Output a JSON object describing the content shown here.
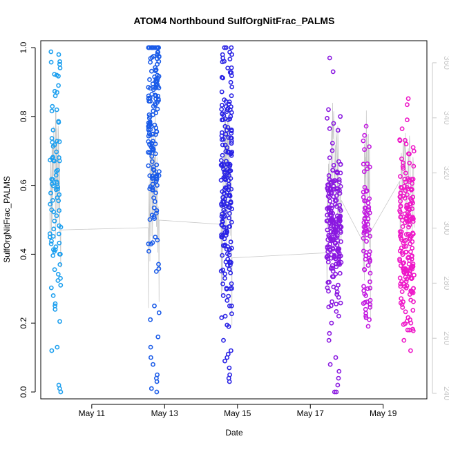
{
  "chart_data": {
    "type": "scatter",
    "title": "ATOM4 Northbound SulfOrgNitFrac_PALMS",
    "xlabel": "Date",
    "ylabel": "SulfOrgNitFrac_PALMS",
    "x_tick_labels": [
      "May 11",
      "May 13",
      "May 15",
      "May 17",
      "May 19"
    ],
    "x_tick_day": [
      11,
      13,
      15,
      17,
      19
    ],
    "xlim_day": [
      9.6,
      20.2
    ],
    "ylim": [
      -0.02,
      1.02
    ],
    "y_ticks": [
      "0.0",
      "0.2",
      "0.4",
      "0.6",
      "0.8",
      "1.0"
    ],
    "y2lim": [
      238,
      368
    ],
    "y2_ticks": [
      "240",
      "260",
      "280",
      "300",
      "320",
      "340",
      "360"
    ],
    "grid": false,
    "legend": "none",
    "secondary_series_color": "#c8c8c8",
    "clusters": [
      {
        "day_start": 9.85,
        "day_end": 10.15,
        "color": "#1ea0ef",
        "n": 75,
        "y_center": 0.62,
        "y_spread": 0.18,
        "outliers": [
          0.0,
          0.01,
          0.02,
          0.12,
          0.13,
          0.25,
          0.24,
          0.31,
          0.33,
          0.37,
          0.45,
          0.4,
          0.43,
          0.87,
          0.89
        ]
      },
      {
        "day_start": 12.55,
        "day_end": 12.85,
        "color": "#1a5be8",
        "n": 160,
        "y_center": 0.8,
        "y_spread": 0.17,
        "outliers": [
          0.0,
          0.01,
          0.03,
          0.04,
          0.05,
          0.08,
          0.1,
          0.13,
          0.16,
          0.21,
          0.23,
          0.25,
          0.35,
          0.43,
          0.45,
          0.6,
          0.62,
          0.98,
          1.0
        ]
      },
      {
        "day_start": 14.55,
        "day_end": 14.85,
        "color": "#2a23e5",
        "n": 190,
        "y_center": 0.62,
        "y_spread": 0.2,
        "outliers": [
          0.03,
          0.04,
          0.05,
          0.07,
          0.09,
          0.1,
          0.12,
          0.15,
          0.19,
          0.22,
          0.25,
          0.28,
          0.3,
          0.33,
          0.96,
          0.97,
          0.98
        ]
      },
      {
        "day_start": 17.45,
        "day_end": 17.85,
        "color": "#8a18e0",
        "n": 200,
        "y_center": 0.47,
        "y_spread": 0.12,
        "outliers": [
          0.0,
          0.0,
          0.02,
          0.04,
          0.06,
          0.08,
          0.1,
          0.15,
          0.17,
          0.2,
          0.76,
          0.78,
          0.8,
          0.82,
          0.93,
          0.97
        ]
      },
      {
        "day_start": 18.45,
        "day_end": 18.65,
        "color": "#c21ae0",
        "n": 70,
        "y_center": 0.45,
        "y_spread": 0.13,
        "outliers": [
          0.21,
          0.22,
          0.24,
          0.26,
          0.28,
          0.3,
          0.32
        ]
      },
      {
        "day_start": 19.45,
        "day_end": 19.85,
        "color": "#ee18c8",
        "n": 190,
        "y_center": 0.47,
        "y_spread": 0.13,
        "outliers": [
          0.12,
          0.15,
          0.18,
          0.2,
          0.73,
          0.72,
          0.71
        ]
      }
    ]
  }
}
